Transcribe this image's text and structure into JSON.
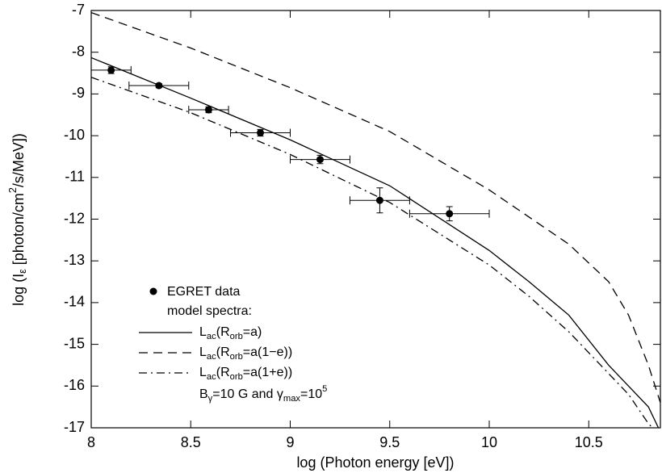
{
  "chart_data": {
    "type": "line",
    "x_label": "log (Photon energy [eV])",
    "y_label": [
      "log (I",
      {
        "sub": "ε"
      },
      " [photon/cm",
      {
        "sup": "2"
      },
      "/s/MeV])"
    ],
    "xlim": [
      8,
      10.86
    ],
    "ylim": [
      -17,
      -7
    ],
    "xticks": [
      8,
      8.5,
      9,
      9.5,
      10,
      10.5
    ],
    "yticks": [
      -17,
      -16,
      -15,
      -14,
      -13,
      -12,
      -11,
      -10,
      -9,
      -8,
      -7
    ],
    "points": {
      "name": "EGRET data",
      "color": "#000000",
      "x": [
        8.1,
        8.34,
        8.59,
        8.85,
        9.15,
        9.45,
        9.8
      ],
      "values": [
        -8.43,
        -8.8,
        -9.38,
        -9.93,
        -10.57,
        -11.55,
        -11.87
      ],
      "xerr": [
        0.1,
        0.15,
        0.1,
        0.15,
        0.15,
        0.15,
        0.2
      ],
      "yerr": [
        0.08,
        0.05,
        0.07,
        0.08,
        0.1,
        0.3,
        0.17
      ]
    },
    "legend_heading": "model spectra:",
    "series": [
      {
        "name": [
          "L",
          {
            "sub": "ac"
          },
          "(R",
          {
            "sub": "orb"
          },
          "=a)"
        ],
        "color": "#000000",
        "line_style": "solid",
        "x": [
          8,
          8.5,
          9,
          9.5,
          10,
          10.2,
          10.4,
          10.6,
          10.7,
          10.8,
          10.85
        ],
        "values": [
          -8.13,
          -9.1,
          -10.1,
          -11.2,
          -12.75,
          -13.5,
          -14.3,
          -15.5,
          -16.0,
          -16.5,
          -17
        ]
      },
      {
        "name": [
          "L",
          {
            "sub": "ac"
          },
          "(R",
          {
            "sub": "orb"
          },
          "=a(1−e))"
        ],
        "color": "#000000",
        "line_style": "dashed",
        "x": [
          8,
          8.5,
          9,
          9.5,
          10,
          10.2,
          10.4,
          10.6,
          10.7,
          10.8,
          10.86
        ],
        "values": [
          -7.05,
          -7.9,
          -8.85,
          -9.9,
          -11.3,
          -11.95,
          -12.6,
          -13.5,
          -14.3,
          -15.5,
          -16.4
        ]
      },
      {
        "name": [
          "L",
          {
            "sub": "ac"
          },
          "(R",
          {
            "sub": "orb"
          },
          "=a(1+e))"
        ],
        "color": "#000000",
        "line_style": "dashdot",
        "x": [
          8,
          8.5,
          9,
          9.5,
          10,
          10.2,
          10.4,
          10.6,
          10.7,
          10.8,
          10.82
        ],
        "values": [
          -8.6,
          -9.45,
          -10.45,
          -11.6,
          -13.1,
          -13.85,
          -14.7,
          -15.7,
          -16.2,
          -16.9,
          -17
        ]
      }
    ],
    "annotation": [
      "B",
      {
        "sub": "γ"
      },
      "=10 G and γ",
      {
        "sub": "max"
      },
      "=10",
      {
        "sup": "5"
      }
    ]
  }
}
